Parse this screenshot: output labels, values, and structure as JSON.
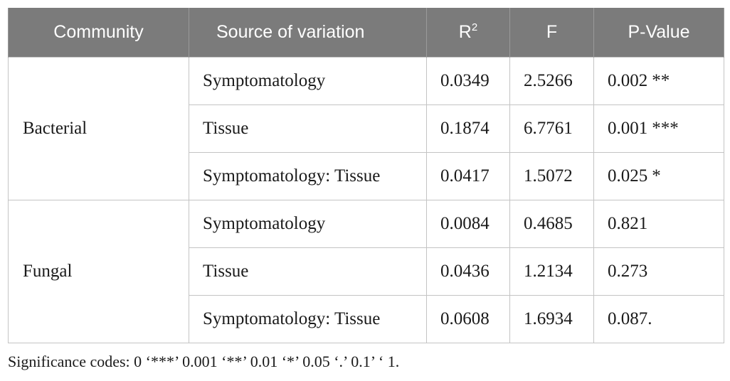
{
  "table": {
    "headers": {
      "community": "Community",
      "source": "Source of variation",
      "r2_base": "R",
      "r2_sup": "2",
      "f": "F",
      "pvalue": "P-Value"
    },
    "groups": [
      {
        "community": "Bacterial",
        "rows": [
          {
            "source": "Symptomatology",
            "r2": "0.0349",
            "f": "2.5266",
            "p": "0.002",
            "sig": "**"
          },
          {
            "source": "Tissue",
            "r2": "0.1874",
            "f": "6.7761",
            "p": "0.001",
            "sig": "***"
          },
          {
            "source": "Symptomatology: Tissue",
            "r2": "0.0417",
            "f": "1.5072",
            "p": "0.025",
            "sig": "*"
          }
        ]
      },
      {
        "community": "Fungal",
        "rows": [
          {
            "source": "Symptomatology",
            "r2": "0.0084",
            "f": "0.4685",
            "p": "0.821",
            "sig": ""
          },
          {
            "source": "Tissue",
            "r2": "0.0436",
            "f": "1.2134",
            "p": "0.273",
            "sig": ""
          },
          {
            "source": "Symptomatology: Tissue",
            "r2": "0.0608",
            "f": "1.6934",
            "p": "0.087.",
            "sig": ""
          }
        ]
      }
    ]
  },
  "footnote": "Significance codes: 0 ‘***’ 0.001 ‘**’ 0.01 ‘*’ 0.05 ‘.’ 0.1’ ‘ 1."
}
